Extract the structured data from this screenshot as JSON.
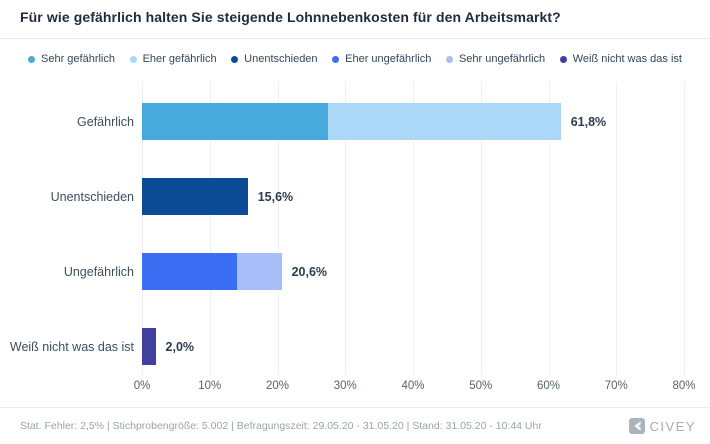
{
  "title": "Für wie gefährlich halten Sie steigende Lohnnebenkosten für den Arbeitsmarkt?",
  "legend": [
    {
      "label": "Sehr gefährlich",
      "color": "#47a9dc"
    },
    {
      "label": "Eher gefährlich",
      "color": "#abd8f6"
    },
    {
      "label": "Unentschieden",
      "color": "#0c4b96"
    },
    {
      "label": "Eher ungefährlich",
      "color": "#3b6ef2"
    },
    {
      "label": "Sehr ungefährlich",
      "color": "#a9bdf8"
    },
    {
      "label": "Weiß nicht was das ist",
      "color": "#41409e"
    }
  ],
  "chart_data": {
    "type": "bar",
    "orientation": "horizontal",
    "stacked": true,
    "title": "Für wie gefährlich halten Sie steigende Lohnnebenkosten für den Arbeitsmarkt?",
    "xlabel": "",
    "ylabel": "",
    "xlim": [
      0,
      80
    ],
    "grid": true,
    "legend_position": "top",
    "x_ticks": [
      "0%",
      "10%",
      "20%",
      "30%",
      "40%",
      "50%",
      "60%",
      "70%",
      "80%"
    ],
    "x_tick_values": [
      0,
      10,
      20,
      30,
      40,
      50,
      60,
      70,
      80
    ],
    "categories": [
      "Gefährlich",
      "Unentschieden",
      "Ungefährlich",
      "Weiß nicht was das ist"
    ],
    "rows": [
      {
        "category": "Gefährlich",
        "total": 61.8,
        "total_label": "61,8%",
        "segments": [
          {
            "series": "Sehr gefährlich",
            "value": 27.5,
            "color": "#47a9dc"
          },
          {
            "series": "Eher gefährlich",
            "value": 34.3,
            "color": "#abd8f6"
          }
        ]
      },
      {
        "category": "Unentschieden",
        "total": 15.6,
        "total_label": "15,6%",
        "segments": [
          {
            "series": "Unentschieden",
            "value": 15.6,
            "color": "#0c4b96"
          }
        ]
      },
      {
        "category": "Ungefährlich",
        "total": 20.6,
        "total_label": "20,6%",
        "segments": [
          {
            "series": "Eher ungefährlich",
            "value": 14.0,
            "color": "#3b6ef2"
          },
          {
            "series": "Sehr ungefährlich",
            "value": 6.6,
            "color": "#a9bdf8"
          }
        ]
      },
      {
        "category": "Weiß nicht was das ist",
        "total": 2.0,
        "total_label": "2,0%",
        "segments": [
          {
            "series": "Weiß nicht was das ist",
            "value": 2.0,
            "color": "#41409e"
          }
        ]
      }
    ]
  },
  "footer": {
    "text": "Stat. Fehler: 2,5% | Stichprobengröße: 5.002 | Befragungszeit: 29.05.20 - 31.05.20 | Stand: 31.05.20 - 10:44 Uhr",
    "brand": "CIVEY",
    "brand_color": "#a9b4bd"
  }
}
